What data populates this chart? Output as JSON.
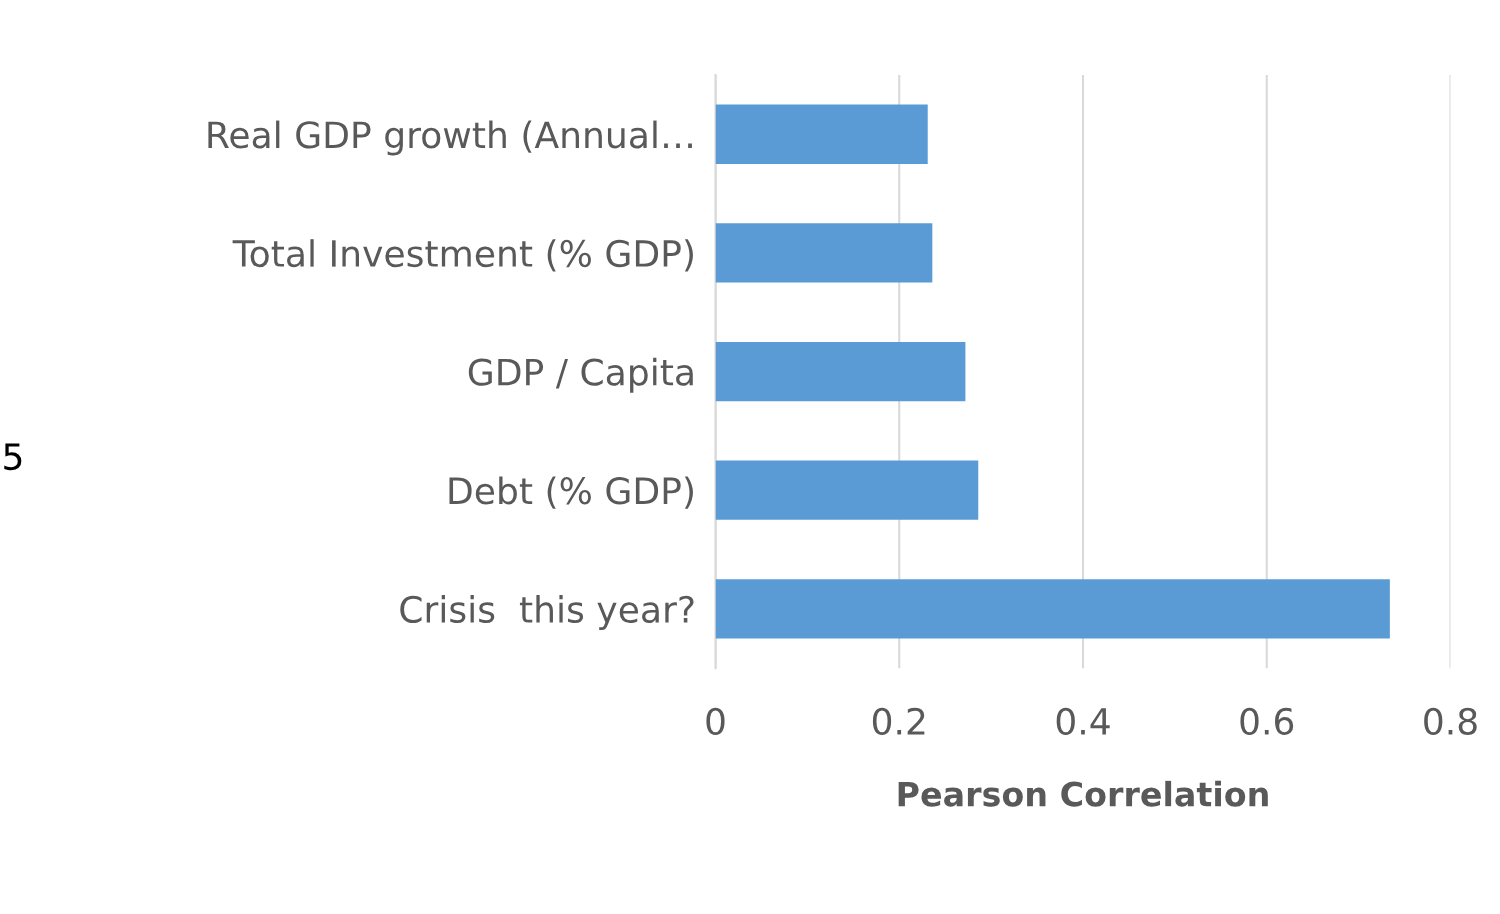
{
  "chart_data": {
    "type": "bar",
    "orientation": "horizontal",
    "categories": [
      "Real GDP growth (Annual…",
      "Total Investment (% GDP)",
      "GDP / Capita",
      "Debt (% GDP)",
      "Crisis  this year?"
    ],
    "values": [
      0.231,
      0.236,
      0.272,
      0.286,
      0.734
    ],
    "color": "#5b9bd5",
    "xlabel": "Pearson Correlation",
    "xlim": [
      0,
      0.8
    ],
    "xticks": [
      0,
      0.2,
      0.4,
      0.6,
      0.8
    ],
    "grid": "x",
    "legend": false,
    "annotations": [
      "5"
    ]
  }
}
